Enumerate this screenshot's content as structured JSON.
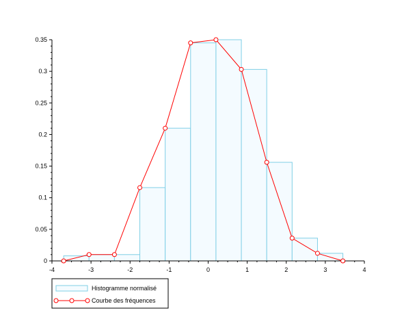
{
  "chart_data": {
    "type": "bar",
    "xlim": [
      -4,
      4
    ],
    "ylim": [
      0,
      0.35
    ],
    "x_ticks": [
      "-4",
      "-3",
      "-2",
      "-1",
      "0",
      "1",
      "2",
      "3",
      "4"
    ],
    "y_ticks": [
      "0",
      "0.05",
      "0.1",
      "0.15",
      "0.2",
      "0.25",
      "0.3",
      "0.35"
    ],
    "legend_position": "bottom-left, outside plot area",
    "histogram": {
      "name": "Histogramme normalisé",
      "bin_edges": [
        -3.7,
        -3.05,
        -2.4,
        -1.75,
        -1.1,
        -0.45,
        0.2,
        0.85,
        1.5,
        2.15,
        2.8,
        3.45
      ],
      "values": [
        0.008,
        0.01,
        0.01,
        0.116,
        0.21,
        0.345,
        0.35,
        0.303,
        0.156,
        0.036,
        0.012
      ],
      "fill": "#f4fbff",
      "stroke": "#7fcfe6"
    },
    "series": [
      {
        "name": "Courbe des fréquences",
        "x": [
          -3.7,
          -3.05,
          -2.4,
          -1.75,
          -1.1,
          -0.45,
          0.2,
          0.85,
          1.5,
          2.15,
          2.8,
          3.45
        ],
        "y": [
          0.0,
          0.01,
          0.01,
          0.116,
          0.21,
          0.345,
          0.35,
          0.303,
          0.156,
          0.036,
          0.012,
          0.0
        ],
        "color": "#ff0000",
        "marker": "circle"
      }
    ]
  }
}
